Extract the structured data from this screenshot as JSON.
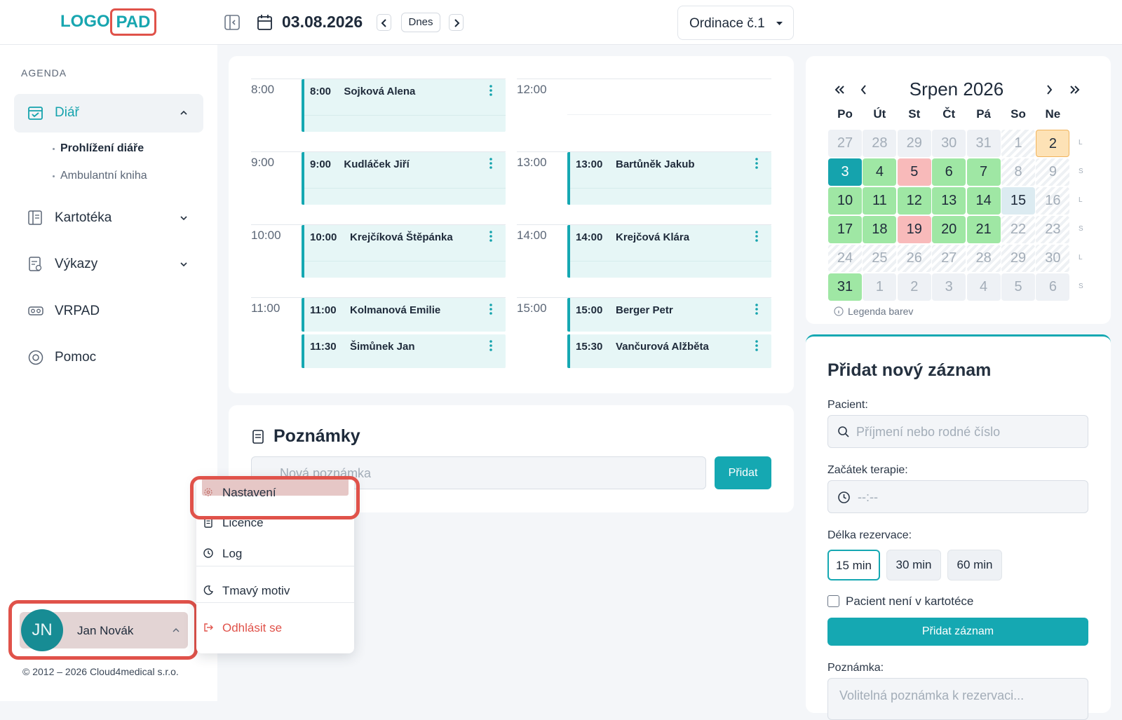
{
  "logo": {
    "left": "LOGO",
    "right": "PAD"
  },
  "topbar": {
    "date": "03.08.2026",
    "today": "Dnes",
    "clinic": "Ordinace č.1"
  },
  "nav": {
    "section": "AGENDA",
    "items": [
      {
        "label": "Diář",
        "children": [
          "Prohlížení diáře",
          "Ambulantní kniha"
        ]
      },
      {
        "label": "Kartotéka"
      },
      {
        "label": "Výkazy"
      },
      {
        "label": "VRPAD"
      },
      {
        "label": "Pomoc"
      }
    ]
  },
  "user": {
    "initials": "JN",
    "name": "Jan Novák",
    "copyright": "© 2012 – 2026 Cloud4medical s.r.o."
  },
  "menu": {
    "items": [
      "Nastavení",
      "Licence",
      "Log",
      "Tmavý motiv",
      "Odhlásit se"
    ]
  },
  "schedule": {
    "columns": [
      {
        "slots": [
          {
            "hour": "8:00",
            "appointments": [
              {
                "time": "8:00",
                "name": "Sojková Alena"
              }
            ]
          },
          {
            "hour": "9:00",
            "appointments": [
              {
                "time": "9:00",
                "name": "Kudláček Jiří"
              }
            ]
          },
          {
            "hour": "10:00",
            "appointments": [
              {
                "time": "10:00",
                "name": "Krejčíková Štěpánka"
              }
            ]
          },
          {
            "hour": "11:00",
            "appointments": [
              {
                "time": "11:00",
                "name": "Kolmanová Emilie"
              },
              {
                "time": "11:30",
                "name": "Šimůnek Jan"
              }
            ]
          }
        ]
      },
      {
        "slots": [
          {
            "hour": "12:00",
            "appointments": []
          },
          {
            "hour": "13:00",
            "appointments": [
              {
                "time": "13:00",
                "name": "Bartůněk Jakub"
              }
            ]
          },
          {
            "hour": "14:00",
            "appointments": [
              {
                "time": "14:00",
                "name": "Krejčová Klára"
              }
            ]
          },
          {
            "hour": "15:00",
            "appointments": [
              {
                "time": "15:00",
                "name": "Berger Petr"
              },
              {
                "time": "15:30",
                "name": "Vančurová Alžběta"
              }
            ]
          }
        ]
      }
    ]
  },
  "notes": {
    "title": "Poznámky",
    "placeholder": "Nová poznámka",
    "button": "Přidat"
  },
  "calendar": {
    "title": "Srpen 2026",
    "weekdays": [
      "Po",
      "Út",
      "St",
      "Čt",
      "Pá",
      "So",
      "Ne"
    ],
    "week_marks": [
      "L",
      "S",
      "L",
      "S",
      "L",
      "S"
    ],
    "weeks": [
      [
        {
          "d": 27,
          "bg": "#eef1f5",
          "fg": "#a3adb8"
        },
        {
          "d": 28,
          "bg": "#eef1f5",
          "fg": "#a3adb8"
        },
        {
          "d": 29,
          "bg": "#eef1f5",
          "fg": "#a3adb8"
        },
        {
          "d": 30,
          "bg": "#eef1f5",
          "fg": "#a3adb8"
        },
        {
          "d": 31,
          "bg": "#eef1f5",
          "fg": "#a3adb8"
        },
        {
          "d": 1,
          "bg": null,
          "fg": "#a3adb8"
        },
        {
          "d": 2,
          "bg": "#fde2b6",
          "fg": "#1e2a3a"
        }
      ],
      [
        {
          "d": 3,
          "bg": "#15a3ad",
          "fg": "#ffffff"
        },
        {
          "d": 4,
          "bg": "#9fe7a4",
          "fg": "#1e2a3a"
        },
        {
          "d": 5,
          "bg": "#f8baba",
          "fg": "#1e2a3a"
        },
        {
          "d": 6,
          "bg": "#9fe7a4",
          "fg": "#1e2a3a"
        },
        {
          "d": 7,
          "bg": "#9fe7a4",
          "fg": "#1e2a3a"
        },
        {
          "d": 8,
          "bg": null,
          "fg": "#a3adb8"
        },
        {
          "d": 9,
          "bg": null,
          "fg": "#a3adb8"
        }
      ],
      [
        {
          "d": 10,
          "bg": "#9fe7a4",
          "fg": "#1e2a3a"
        },
        {
          "d": 11,
          "bg": "#9fe7a4",
          "fg": "#1e2a3a"
        },
        {
          "d": 12,
          "bg": "#9fe7a4",
          "fg": "#1e2a3a"
        },
        {
          "d": 13,
          "bg": "#9fe7a4",
          "fg": "#1e2a3a"
        },
        {
          "d": 14,
          "bg": "#9fe7a4",
          "fg": "#1e2a3a"
        },
        {
          "d": 15,
          "bg": "#dcebf1",
          "fg": "#1e2a3a"
        },
        {
          "d": 16,
          "bg": null,
          "fg": "#a3adb8"
        }
      ],
      [
        {
          "d": 17,
          "bg": "#9fe7a4",
          "fg": "#1e2a3a"
        },
        {
          "d": 18,
          "bg": "#9fe7a4",
          "fg": "#1e2a3a"
        },
        {
          "d": 19,
          "bg": "#f8baba",
          "fg": "#1e2a3a"
        },
        {
          "d": 20,
          "bg": "#9fe7a4",
          "fg": "#1e2a3a"
        },
        {
          "d": 21,
          "bg": "#9fe7a4",
          "fg": "#1e2a3a"
        },
        {
          "d": 22,
          "bg": null,
          "fg": "#a3adb8"
        },
        {
          "d": 23,
          "bg": null,
          "fg": "#a3adb8"
        }
      ],
      [
        {
          "d": 24,
          "bg": null,
          "fg": "#a3adb8"
        },
        {
          "d": 25,
          "bg": null,
          "fg": "#a3adb8"
        },
        {
          "d": 26,
          "bg": null,
          "fg": "#a3adb8"
        },
        {
          "d": 27,
          "bg": null,
          "fg": "#a3adb8"
        },
        {
          "d": 28,
          "bg": null,
          "fg": "#a3adb8"
        },
        {
          "d": 29,
          "bg": null,
          "fg": "#a3adb8"
        },
        {
          "d": 30,
          "bg": null,
          "fg": "#a3adb8"
        }
      ],
      [
        {
          "d": 31,
          "bg": "#9fe7a4",
          "fg": "#1e2a3a"
        },
        {
          "d": 1,
          "bg": "#eef1f5",
          "fg": "#a3adb8"
        },
        {
          "d": 2,
          "bg": "#eef1f5",
          "fg": "#a3adb8"
        },
        {
          "d": 3,
          "bg": "#eef1f5",
          "fg": "#a3adb8"
        },
        {
          "d": 4,
          "bg": "#eef1f5",
          "fg": "#a3adb8"
        },
        {
          "d": 5,
          "bg": "#eef1f5",
          "fg": "#a3adb8"
        },
        {
          "d": 6,
          "bg": "#eef1f5",
          "fg": "#a3adb8"
        }
      ]
    ],
    "legend": "Legenda barev"
  },
  "form": {
    "title": "Přidat nový záznam",
    "patient_label": "Pacient:",
    "patient_placeholder": "Příjmení nebo rodné číslo",
    "start_label": "Začátek terapie:",
    "start_placeholder": "--:--",
    "length_label": "Délka rezervace:",
    "lengths": [
      "15 min",
      "30 min",
      "60 min"
    ],
    "not_in_records": "Pacient není v kartotéce",
    "submit": "Přidat záznam",
    "note_label": "Poznámka:",
    "note_placeholder": "Volitelná poznámka k rezervaci..."
  }
}
